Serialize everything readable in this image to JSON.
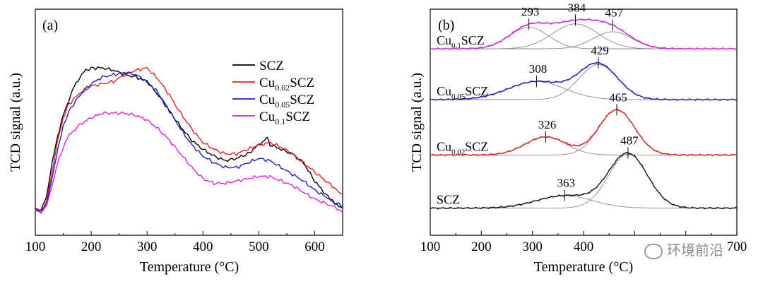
{
  "chart_data": [
    {
      "type": "line",
      "panel_label": "(a)",
      "xlabel": "Temperature (°C)",
      "ylabel": "TCD signal (a.u.)",
      "xlim": [
        100,
        650
      ],
      "ylim": [
        0,
        1
      ],
      "y_ticks_labeled": false,
      "x_ticks": [
        100,
        200,
        300,
        400,
        500,
        600
      ],
      "legend_position": "top-right",
      "series": [
        {
          "name": "SCZ",
          "label_base": "SCZ",
          "label_sub": "",
          "label_tail": "",
          "color": "#000000",
          "points": [
            [
              100,
              0.12
            ],
            [
              110,
              0.11
            ],
            [
              120,
              0.17
            ],
            [
              130,
              0.32
            ],
            [
              140,
              0.44
            ],
            [
              150,
              0.53
            ],
            [
              160,
              0.6
            ],
            [
              170,
              0.66
            ],
            [
              180,
              0.7
            ],
            [
              190,
              0.73
            ],
            [
              200,
              0.74
            ],
            [
              220,
              0.74
            ],
            [
              240,
              0.73
            ],
            [
              260,
              0.71
            ],
            [
              280,
              0.7
            ],
            [
              300,
              0.68
            ],
            [
              320,
              0.62
            ],
            [
              340,
              0.55
            ],
            [
              360,
              0.48
            ],
            [
              380,
              0.42
            ],
            [
              400,
              0.38
            ],
            [
              420,
              0.35
            ],
            [
              440,
              0.33
            ],
            [
              460,
              0.34
            ],
            [
              480,
              0.36
            ],
            [
              490,
              0.38
            ],
            [
              500,
              0.4
            ],
            [
              510,
              0.42
            ],
            [
              515,
              0.44
            ],
            [
              520,
              0.4
            ],
            [
              540,
              0.38
            ],
            [
              560,
              0.36
            ],
            [
              580,
              0.32
            ],
            [
              600,
              0.24
            ],
            [
              620,
              0.18
            ],
            [
              640,
              0.13
            ],
            [
              650,
              0.12
            ]
          ]
        },
        {
          "name": "Cu0.02SCZ",
          "label_base": "Cu",
          "label_sub": "0.02",
          "label_tail": "SCZ",
          "color": "#e8211f",
          "points": [
            [
              100,
              0.12
            ],
            [
              110,
              0.1
            ],
            [
              120,
              0.15
            ],
            [
              130,
              0.28
            ],
            [
              140,
              0.42
            ],
            [
              150,
              0.52
            ],
            [
              160,
              0.58
            ],
            [
              180,
              0.63
            ],
            [
              200,
              0.66
            ],
            [
              220,
              0.67
            ],
            [
              240,
              0.68
            ],
            [
              260,
              0.71
            ],
            [
              280,
              0.73
            ],
            [
              300,
              0.74
            ],
            [
              320,
              0.69
            ],
            [
              340,
              0.62
            ],
            [
              360,
              0.54
            ],
            [
              380,
              0.47
            ],
            [
              400,
              0.41
            ],
            [
              420,
              0.38
            ],
            [
              440,
              0.36
            ],
            [
              460,
              0.36
            ],
            [
              480,
              0.38
            ],
            [
              500,
              0.4
            ],
            [
              520,
              0.41
            ],
            [
              540,
              0.39
            ],
            [
              560,
              0.36
            ],
            [
              580,
              0.32
            ],
            [
              600,
              0.28
            ],
            [
              620,
              0.24
            ],
            [
              640,
              0.2
            ],
            [
              650,
              0.18
            ]
          ]
        },
        {
          "name": "Cu0.05SCZ",
          "label_base": "Cu",
          "label_sub": "0.05",
          "label_tail": "SCZ",
          "color": "#1c1cc8",
          "points": [
            [
              100,
              0.12
            ],
            [
              110,
              0.1
            ],
            [
              120,
              0.14
            ],
            [
              130,
              0.25
            ],
            [
              140,
              0.38
            ],
            [
              150,
              0.48
            ],
            [
              160,
              0.55
            ],
            [
              180,
              0.62
            ],
            [
              200,
              0.67
            ],
            [
              220,
              0.7
            ],
            [
              240,
              0.71
            ],
            [
              260,
              0.72
            ],
            [
              280,
              0.71
            ],
            [
              300,
              0.68
            ],
            [
              320,
              0.63
            ],
            [
              340,
              0.55
            ],
            [
              360,
              0.47
            ],
            [
              380,
              0.4
            ],
            [
              400,
              0.35
            ],
            [
              420,
              0.32
            ],
            [
              440,
              0.3
            ],
            [
              460,
              0.3
            ],
            [
              480,
              0.32
            ],
            [
              500,
              0.34
            ],
            [
              520,
              0.33
            ],
            [
              540,
              0.3
            ],
            [
              560,
              0.27
            ],
            [
              580,
              0.24
            ],
            [
              600,
              0.2
            ],
            [
              620,
              0.17
            ],
            [
              640,
              0.14
            ],
            [
              650,
              0.13
            ]
          ]
        },
        {
          "name": "Cu0.1SCZ",
          "label_base": "Cu",
          "label_sub": "0.1",
          "label_tail": "SCZ",
          "color": "#e020e0",
          "points": [
            [
              100,
              0.11
            ],
            [
              110,
              0.1
            ],
            [
              120,
              0.13
            ],
            [
              130,
              0.22
            ],
            [
              140,
              0.32
            ],
            [
              150,
              0.39
            ],
            [
              160,
              0.44
            ],
            [
              180,
              0.49
            ],
            [
              200,
              0.52
            ],
            [
              220,
              0.54
            ],
            [
              240,
              0.54
            ],
            [
              260,
              0.54
            ],
            [
              280,
              0.53
            ],
            [
              300,
              0.51
            ],
            [
              320,
              0.47
            ],
            [
              340,
              0.42
            ],
            [
              360,
              0.36
            ],
            [
              380,
              0.3
            ],
            [
              400,
              0.25
            ],
            [
              420,
              0.23
            ],
            [
              440,
              0.23
            ],
            [
              460,
              0.24
            ],
            [
              480,
              0.25
            ],
            [
              500,
              0.26
            ],
            [
              520,
              0.26
            ],
            [
              540,
              0.24
            ],
            [
              560,
              0.22
            ],
            [
              580,
              0.19
            ],
            [
              600,
              0.16
            ],
            [
              620,
              0.14
            ],
            [
              640,
              0.12
            ],
            [
              650,
              0.1
            ]
          ]
        }
      ]
    },
    {
      "type": "line",
      "panel_label": "(b)",
      "xlabel": "Temperature (°C)",
      "ylabel": "TCD signal (a.u.)",
      "xlim": [
        100,
        700
      ],
      "ylim": [
        0,
        1
      ],
      "y_ticks_labeled": false,
      "x_ticks": [
        100,
        200,
        300,
        400,
        500,
        600,
        700
      ],
      "x_tick_labels": [
        "100",
        "200",
        "300",
        "400",
        "",
        "",
        "700"
      ],
      "traces": [
        {
          "label_base": "Cu",
          "label_sub": "0.1",
          "label_tail": "SCZ",
          "baseline": 0.825,
          "color": "#e020e0",
          "peaks": [
            {
              "center": 293,
              "height": 0.095,
              "width": 38
            },
            {
              "center": 384,
              "height": 0.11,
              "width": 45
            },
            {
              "center": 457,
              "height": 0.075,
              "width": 38
            }
          ],
          "peak_labels": [
            "293",
            "384",
            "457"
          ]
        },
        {
          "label_base": "Cu",
          "label_sub": "0.05",
          "label_tail": "SCZ",
          "baseline": 0.6,
          "color": "#1c1cc8",
          "peaks": [
            {
              "center": 308,
              "height": 0.08,
              "width": 55
            },
            {
              "center": 429,
              "height": 0.155,
              "width": 38
            }
          ],
          "peak_labels": [
            "308",
            "429"
          ]
        },
        {
          "label_base": "Cu",
          "label_sub": "0.02",
          "label_tail": "SCZ",
          "baseline": 0.355,
          "color": "#e8211f",
          "peaks": [
            {
              "center": 326,
              "height": 0.08,
              "width": 40
            },
            {
              "center": 465,
              "height": 0.2,
              "width": 35
            }
          ],
          "peak_labels": [
            "326",
            "465"
          ]
        },
        {
          "label_base": "SCZ",
          "label_sub": "",
          "label_tail": "",
          "baseline": 0.12,
          "color": "#1a1a1a",
          "peaks": [
            {
              "center": 363,
              "height": 0.055,
              "width": 55
            },
            {
              "center": 487,
              "height": 0.24,
              "width": 38
            }
          ],
          "peak_labels": [
            "363",
            "487"
          ]
        }
      ]
    }
  ],
  "watermark": {
    "text": "环境前沿",
    "icon": "wechat-icon"
  }
}
